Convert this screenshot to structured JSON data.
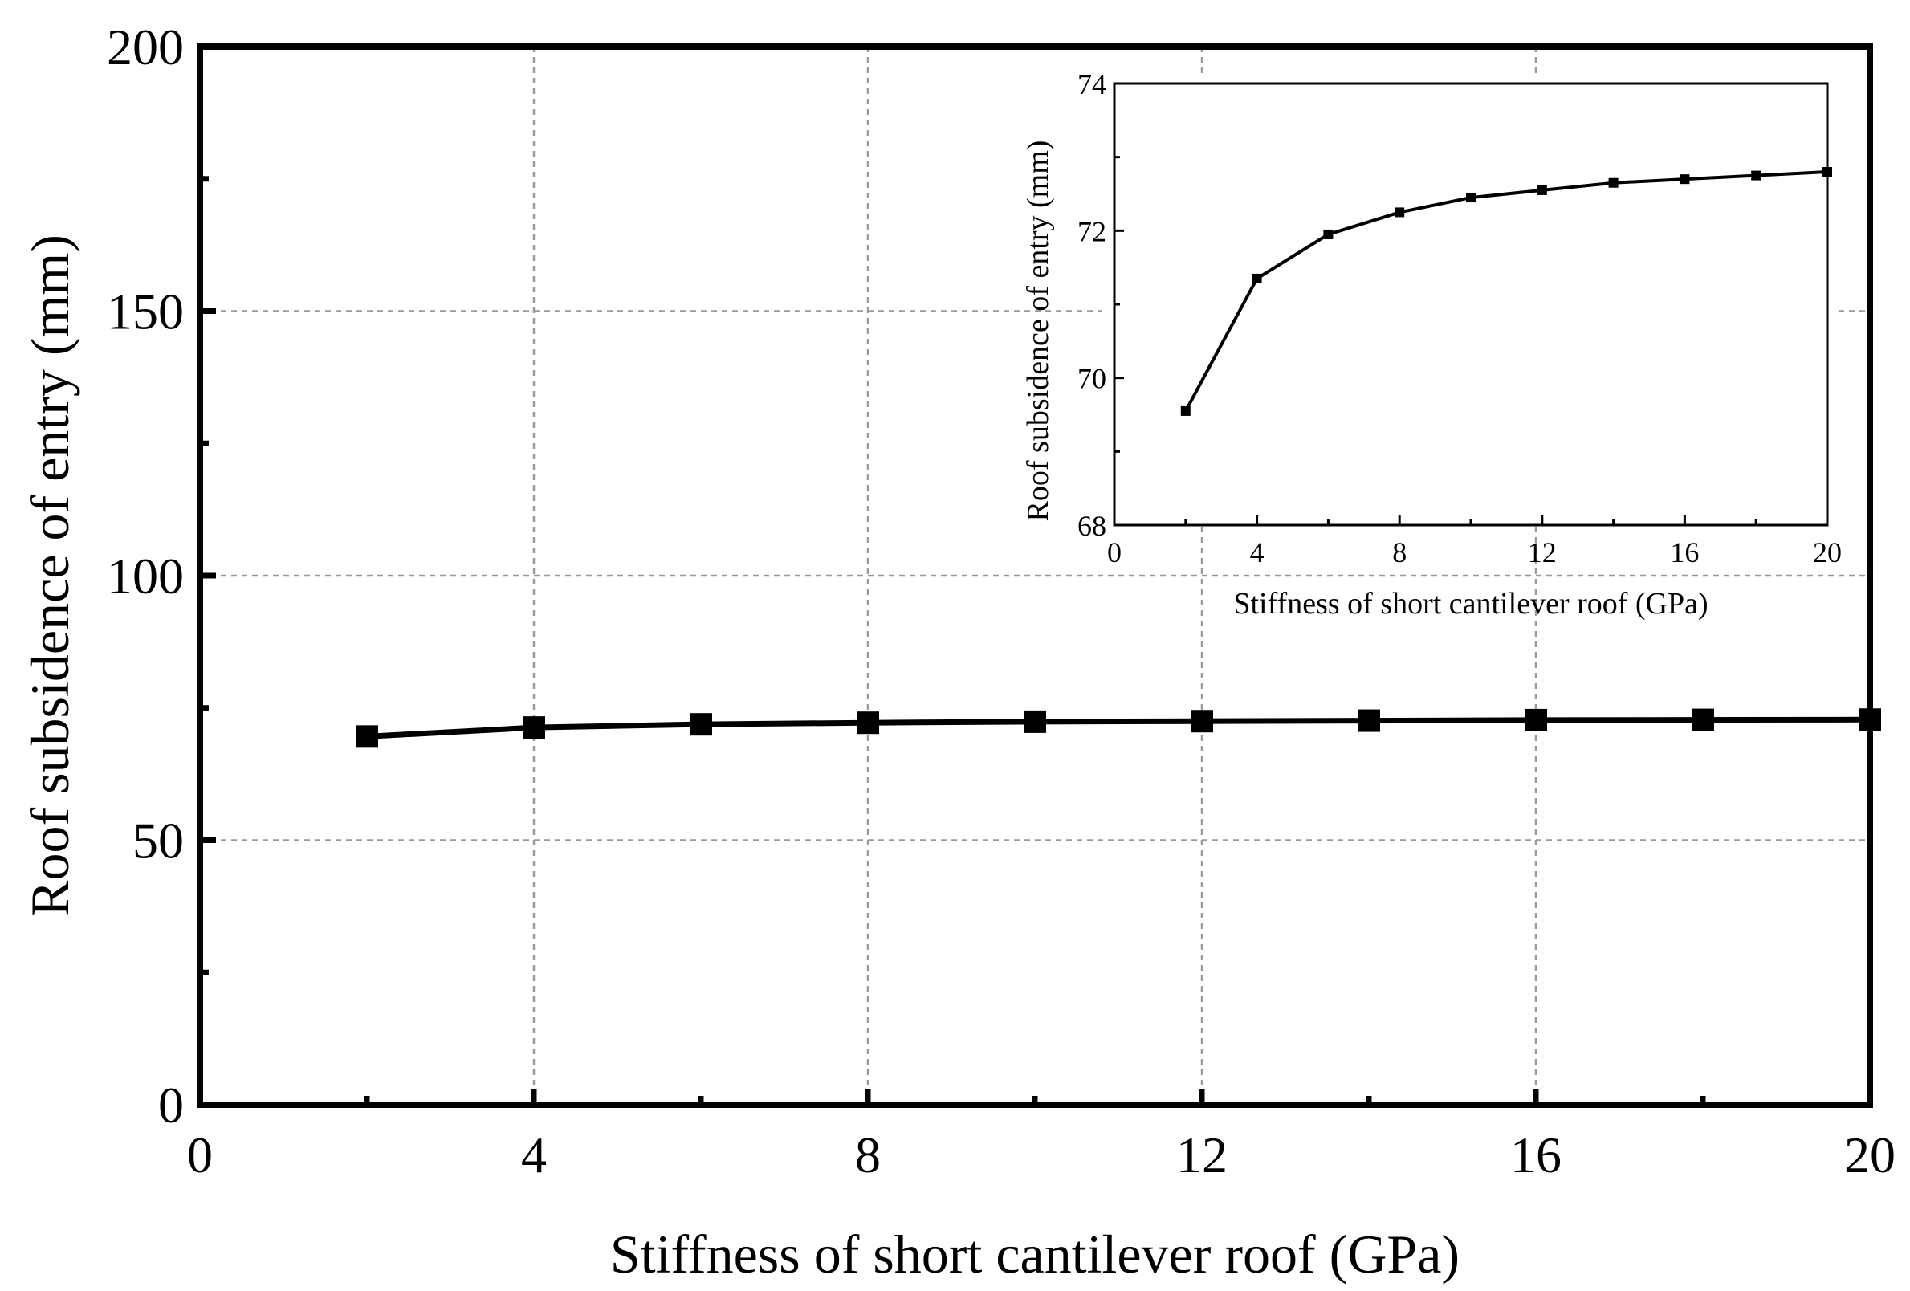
{
  "chart_data": [
    {
      "type": "line",
      "name": "main",
      "title": "",
      "xlabel": "Stiffness of short cantilever roof (GPa)",
      "ylabel": "Roof subsidence of entry (mm)",
      "xlim": [
        0,
        20
      ],
      "ylim": [
        0,
        200
      ],
      "xticks": [
        0,
        4,
        8,
        12,
        16,
        20
      ],
      "yticks": [
        0,
        50,
        100,
        150,
        200
      ],
      "xtick_labels": [
        "0",
        "4",
        "8",
        "12",
        "16",
        "20"
      ],
      "ytick_labels": [
        "0",
        "50",
        "100",
        "150",
        "200"
      ],
      "grid": true,
      "series": [
        {
          "name": "Roof subsidence",
          "x": [
            2,
            4,
            6,
            8,
            10,
            12,
            14,
            16,
            18,
            20
          ],
          "y": [
            69.6,
            71.3,
            71.9,
            72.2,
            72.4,
            72.5,
            72.6,
            72.7,
            72.75,
            72.8
          ],
          "marker": "square",
          "color": "#000000"
        }
      ]
    },
    {
      "type": "line",
      "name": "inset",
      "title": "",
      "xlabel": "Stiffness of short cantilever roof (GPa)",
      "ylabel": "Roof subsidence of entry (mm)",
      "xlim": [
        0,
        20
      ],
      "ylim": [
        68,
        74
      ],
      "xticks": [
        0,
        4,
        8,
        12,
        16,
        20
      ],
      "yticks": [
        68,
        70,
        72,
        74
      ],
      "xtick_labels": [
        "0",
        "4",
        "8",
        "12",
        "16",
        "20"
      ],
      "ytick_labels": [
        "68",
        "70",
        "72",
        "74"
      ],
      "grid": false,
      "series": [
        {
          "name": "Roof subsidence",
          "x": [
            2,
            4,
            6,
            8,
            10,
            12,
            14,
            16,
            18,
            20
          ],
          "y": [
            69.55,
            71.35,
            71.95,
            72.25,
            72.45,
            72.55,
            72.65,
            72.7,
            72.75,
            72.8
          ],
          "marker": "square",
          "color": "#000000"
        }
      ]
    }
  ]
}
